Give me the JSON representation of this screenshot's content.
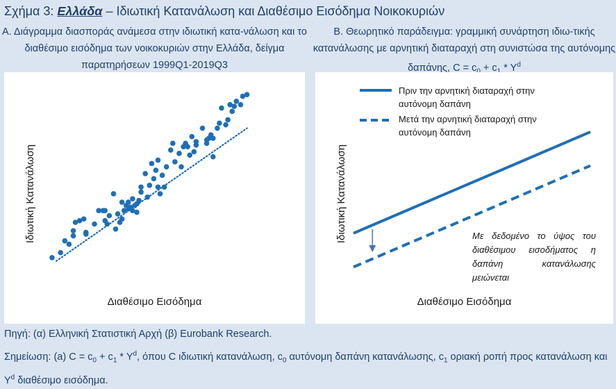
{
  "figure": {
    "prefix": "Σχήμα 3: ",
    "country": "Ελλάδα",
    "suffix": " – Ιδιωτική Κατανάλωση και Διαθέσιμο Εισόδημα Νοικοκυριών"
  },
  "panel_a": {
    "title": "Α. Διάγραμμα διασποράς ανάμεσα στην ιδιωτική κατα-νάλωση και το διαθέσιμο εισόδημα των νοικοκυριών στην Ελλάδα, δείγμα παρατηρήσεων 1999Q1-2019Q3",
    "xlabel": "Διαθέσιμο Εισόδημα",
    "ylabel": "Ιδιωτική Κατανάλωση"
  },
  "panel_b": {
    "title_pre": "Β. Θεωρητικό παράδειγμα: γραμμική συνάρτηση ιδιω-τικής κατανάλωσης με αρνητική διαταραχή στη συνιστώσα της αυτόνομης δαπάνης, C = c",
    "title_sub0": "0",
    "title_mid": " + c",
    "title_sub1": "1",
    "title_post": " * Y",
    "title_sup": "d",
    "xlabel": "Διαθέσιμο Εισόδημα",
    "ylabel": "Ιδιωτική Κατανάλωση",
    "legend_before": "Πριν την αρνητική διαταραχή στην αυτόνομη δαπάνη",
    "legend_after": "Μετά την αρνητική διαταραχή στην αυτόνομη δαπάνη",
    "annotation": "Με δεδομένο το ύψος του διαθέσιμου εισοδήματος η δαπάνη κατανάλωσης μειώνεται"
  },
  "source": "Πηγή: (α) Ελληνική Στατιστική Αρχή (β) Eurobank Research.",
  "note": {
    "p1": "Σημείωση: (a) C = c",
    "s1": "0",
    "p2": " + c",
    "s2": "1",
    "p3": " * Y",
    "sup1": "d",
    "p4": ", όπου C ιδιωτική κατανάλωση, c",
    "s3": "0",
    "p5": " αυτόνομη δαπάνη κατανάλωσης, c",
    "s4": "1",
    "p6": " οριακή ροπή προς κατανάλωση και Y",
    "sup2": "d",
    "p7": " διαθέσιμο εισόδημα."
  },
  "colors": {
    "accent": "#1f6fb5",
    "title": "#1f3f6e",
    "background": "#dbe5f1"
  },
  "chart_data": [
    {
      "type": "scatter",
      "panel": "A",
      "xlim": [
        0,
        100
      ],
      "ylim": [
        0,
        100
      ],
      "grid": false,
      "trendline": {
        "style": "dotted",
        "from": [
          2,
          3
        ],
        "to": [
          92,
          82
        ]
      },
      "points": [
        [
          0,
          5
        ],
        [
          4,
          8
        ],
        [
          6,
          15
        ],
        [
          8,
          13
        ],
        [
          10,
          18
        ],
        [
          10,
          21
        ],
        [
          11,
          26
        ],
        [
          13,
          27
        ],
        [
          15,
          28
        ],
        [
          16,
          19
        ],
        [
          16,
          20
        ],
        [
          20,
          25
        ],
        [
          22,
          33
        ],
        [
          24,
          33
        ],
        [
          25,
          27
        ],
        [
          25,
          33
        ],
        [
          26,
          25
        ],
        [
          27,
          30
        ],
        [
          29,
          43
        ],
        [
          30,
          22
        ],
        [
          31,
          31
        ],
        [
          32,
          26
        ],
        [
          33,
          28
        ],
        [
          33,
          38
        ],
        [
          34,
          33
        ],
        [
          35,
          36
        ],
        [
          36,
          34
        ],
        [
          36,
          38
        ],
        [
          37,
          35
        ],
        [
          38,
          40
        ],
        [
          38,
          33
        ],
        [
          39,
          36
        ],
        [
          40,
          37
        ],
        [
          40,
          32
        ],
        [
          41,
          39
        ],
        [
          42,
          44
        ],
        [
          42,
          47
        ],
        [
          44,
          55
        ],
        [
          45,
          41
        ],
        [
          46,
          48
        ],
        [
          47,
          61
        ],
        [
          48,
          52
        ],
        [
          49,
          57
        ],
        [
          50,
          63
        ],
        [
          50,
          47
        ],
        [
          51,
          43
        ],
        [
          52,
          54
        ],
        [
          53,
          47
        ],
        [
          54,
          59
        ],
        [
          56,
          69
        ],
        [
          57,
          73
        ],
        [
          58,
          62
        ],
        [
          60,
          67
        ],
        [
          61,
          59
        ],
        [
          62,
          71
        ],
        [
          63,
          73
        ],
        [
          64,
          71
        ],
        [
          65,
          66
        ],
        [
          66,
          77
        ],
        [
          67,
          68
        ],
        [
          68,
          72
        ],
        [
          68,
          74
        ],
        [
          71,
          82
        ],
        [
          73,
          73
        ],
        [
          73,
          75
        ],
        [
          74,
          76
        ],
        [
          75,
          78
        ],
        [
          76,
          76
        ],
        [
          76,
          65
        ],
        [
          78,
          82
        ],
        [
          79,
          85
        ],
        [
          80,
          94
        ],
        [
          82,
          84
        ],
        [
          83,
          87
        ],
        [
          84,
          96
        ],
        [
          85,
          92
        ],
        [
          86,
          95
        ],
        [
          87,
          98
        ],
        [
          89,
          96
        ],
        [
          90,
          101
        ],
        [
          92,
          102
        ]
      ]
    },
    {
      "type": "line",
      "panel": "B",
      "x": [
        0,
        100
      ],
      "series": [
        {
          "name": "Πριν την αρνητική διαταραχή στην αυτόνομη δαπάνη",
          "style": "solid",
          "values": [
            20,
            86
          ]
        },
        {
          "name": "Μετά την αρνητική διαταραχή στην αυτόνομη δαπάνη",
          "style": "dashed",
          "values": [
            -2,
            64
          ]
        }
      ],
      "ylim": [
        -5,
        100
      ],
      "grid": false
    }
  ]
}
